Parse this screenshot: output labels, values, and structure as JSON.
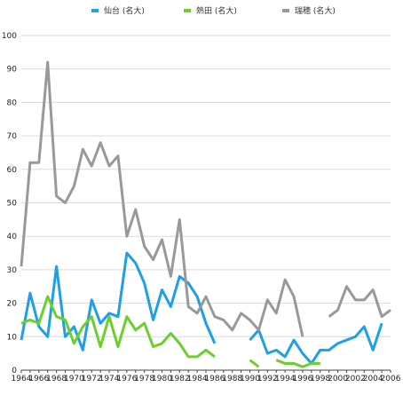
{
  "chart_data": {
    "type": "line",
    "title": "",
    "xlabel": "",
    "ylabel": "",
    "ylim": [
      0,
      100
    ],
    "xlim": [
      1964,
      2006
    ],
    "grid": true,
    "legend_position": "top-center",
    "yticks": [
      "0",
      "10",
      "20",
      "30",
      "40",
      "50",
      "60",
      "70",
      "80",
      "90",
      "100"
    ],
    "xticks": [
      "1964",
      "1966",
      "1968",
      "1970",
      "1972",
      "1974",
      "1976",
      "1978",
      "1980",
      "1982",
      "1984",
      "1986",
      "1988",
      "1990",
      "1992",
      "1994",
      "1996",
      "1998",
      "2000",
      "2002",
      "2004",
      "2006"
    ],
    "series": [
      {
        "name": "仙台 (名大)",
        "color": "#1e9fe6",
        "points": [
          [
            1964,
            9
          ],
          [
            1965,
            23
          ],
          [
            1966,
            13
          ],
          [
            1967,
            10
          ],
          [
            1968,
            31
          ],
          [
            1969,
            10
          ],
          [
            1970,
            13
          ],
          [
            1971,
            6
          ],
          [
            1972,
            21
          ],
          [
            1973,
            14
          ],
          [
            1974,
            17
          ],
          [
            1975,
            16
          ],
          [
            1976,
            35
          ],
          [
            1977,
            32
          ],
          [
            1978,
            26
          ],
          [
            1979,
            15
          ],
          [
            1980,
            24
          ],
          [
            1981,
            19
          ],
          [
            1982,
            28
          ],
          [
            1983,
            26
          ],
          [
            1984,
            22
          ],
          [
            1985,
            14
          ],
          [
            1986,
            8
          ],
          [
            1990,
            9
          ],
          [
            1991,
            12
          ],
          [
            1992,
            5
          ],
          [
            1993,
            6
          ],
          [
            1994,
            4
          ],
          [
            1995,
            9
          ],
          [
            1996,
            5
          ],
          [
            1997,
            2
          ],
          [
            1998,
            6
          ],
          [
            1999,
            6
          ],
          [
            2000,
            8
          ],
          [
            2001,
            9
          ],
          [
            2002,
            10
          ],
          [
            2003,
            13
          ],
          [
            2004,
            6
          ],
          [
            2005,
            14
          ]
        ]
      },
      {
        "name": "熱田 (名大)",
        "color": "#6ccf2e",
        "points": [
          [
            1964,
            14
          ],
          [
            1965,
            15
          ],
          [
            1966,
            14
          ],
          [
            1967,
            22
          ],
          [
            1968,
            16
          ],
          [
            1969,
            15
          ],
          [
            1970,
            8
          ],
          [
            1971,
            13
          ],
          [
            1972,
            16
          ],
          [
            1973,
            7
          ],
          [
            1974,
            16
          ],
          [
            1975,
            7
          ],
          [
            1976,
            16
          ],
          [
            1977,
            12
          ],
          [
            1978,
            14
          ],
          [
            1979,
            7
          ],
          [
            1980,
            8
          ],
          [
            1981,
            11
          ],
          [
            1982,
            8
          ],
          [
            1983,
            4
          ],
          [
            1984,
            4
          ],
          [
            1985,
            6
          ],
          [
            1986,
            4
          ],
          [
            1990,
            3
          ],
          [
            1991,
            1
          ],
          [
            1993,
            3
          ],
          [
            1994,
            2
          ],
          [
            1995,
            2
          ],
          [
            1996,
            1
          ],
          [
            1997,
            2
          ],
          [
            1998,
            2
          ]
        ]
      },
      {
        "name": "瑞穂 (名大)",
        "color": "#999999",
        "points": [
          [
            1964,
            31
          ],
          [
            1965,
            62
          ],
          [
            1966,
            62
          ],
          [
            1967,
            92
          ],
          [
            1968,
            52
          ],
          [
            1969,
            50
          ],
          [
            1970,
            55
          ],
          [
            1971,
            66
          ],
          [
            1972,
            61
          ],
          [
            1973,
            68
          ],
          [
            1974,
            61
          ],
          [
            1975,
            64
          ],
          [
            1976,
            40
          ],
          [
            1977,
            48
          ],
          [
            1978,
            37
          ],
          [
            1979,
            33
          ],
          [
            1980,
            39
          ],
          [
            1981,
            28
          ],
          [
            1982,
            45
          ],
          [
            1983,
            19
          ],
          [
            1984,
            17
          ],
          [
            1985,
            22
          ],
          [
            1986,
            16
          ],
          [
            1987,
            15
          ],
          [
            1988,
            12
          ],
          [
            1989,
            17
          ],
          [
            1990,
            15
          ],
          [
            1991,
            12
          ],
          [
            1992,
            21
          ],
          [
            1993,
            17
          ],
          [
            1994,
            27
          ],
          [
            1995,
            22
          ],
          [
            1996,
            10
          ],
          [
            1999,
            16
          ],
          [
            2000,
            18
          ],
          [
            2001,
            25
          ],
          [
            2002,
            21
          ],
          [
            2003,
            21
          ],
          [
            2004,
            24
          ],
          [
            2005,
            16
          ],
          [
            2006,
            18
          ]
        ]
      }
    ]
  }
}
